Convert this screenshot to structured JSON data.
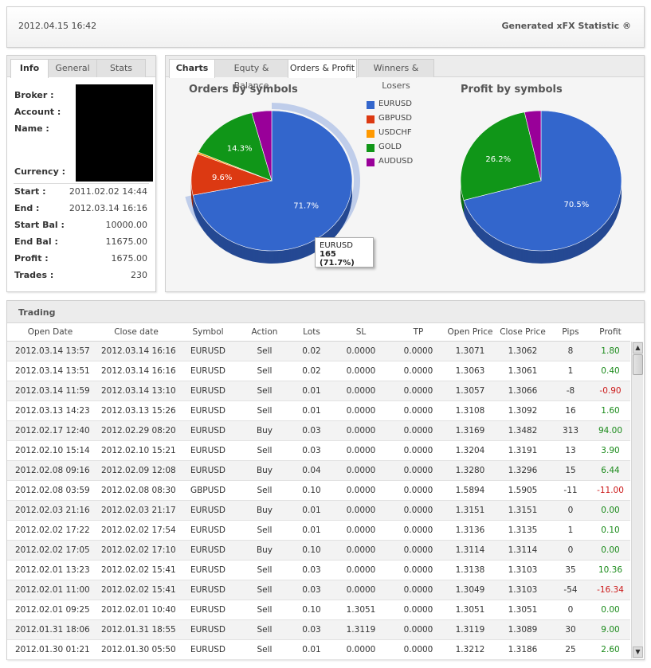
{
  "header": {
    "date": "2012.04.15 16:42",
    "generator": "Generated xFX Statistic ®"
  },
  "info": {
    "tabs": [
      "Info",
      "General",
      "Stats"
    ],
    "labels": {
      "broker": "Broker :",
      "account": "Account :",
      "name": "Name :",
      "currency": "Currency :"
    },
    "rows": [
      {
        "label": "Start :",
        "value": "2011.02.02 14:44"
      },
      {
        "label": "End :",
        "value": "2012.03.14 16:16"
      },
      {
        "label": "Start Bal :",
        "value": "10000.00"
      },
      {
        "label": "End Bal :",
        "value": "11675.00"
      },
      {
        "label": "Profit :",
        "value": "1675.00"
      },
      {
        "label": "Trades :",
        "value": "230"
      }
    ]
  },
  "charts_panel": {
    "tabs": [
      "Charts",
      "Equty & Balance",
      "Orders & Profit",
      "Winners & Losers"
    ],
    "tooltip": {
      "symbol": "EURUSD",
      "value": "165 (71.7%)"
    }
  },
  "chart_data": [
    {
      "type": "pie",
      "title": "Orders by symbols",
      "slices": [
        {
          "label": "EURUSD",
          "value": 71.7,
          "display": "71.7%"
        },
        {
          "label": "GBPUSD",
          "value": 9.6,
          "display": "9.6%"
        },
        {
          "label": "USDCHF",
          "value": 0.4,
          "display": ""
        },
        {
          "label": "GOLD",
          "value": 14.3,
          "display": "14.3%"
        },
        {
          "label": "AUDUSD",
          "value": 4.0,
          "display": ""
        }
      ],
      "legend": [
        "EURUSD",
        "GBPUSD",
        "USDCHF",
        "GOLD",
        "AUDUSD"
      ],
      "legend_placement": "right",
      "colors": [
        "#3366cc",
        "#dc3912",
        "#ff9900",
        "#109618",
        "#990099"
      ]
    },
    {
      "type": "pie",
      "title": "Profit by symbols",
      "slices": [
        {
          "label": "EURUSD",
          "value": 70.5,
          "display": "70.5%"
        },
        {
          "label": "GOLD",
          "value": 26.2,
          "display": "26.2%"
        },
        {
          "label": "AUDUSD",
          "value": 3.3,
          "display": ""
        }
      ],
      "colors": [
        "#3366cc",
        "#109618",
        "#990099"
      ]
    }
  ],
  "trading": {
    "title": "Trading",
    "columns": [
      "Open Date",
      "Close date",
      "Symbol",
      "Action",
      "Lots",
      "SL",
      "TP",
      "Open Price",
      "Close Price",
      "Pips",
      "Profit"
    ],
    "rows": [
      [
        "2012.03.14 13:57",
        "2012.03.14 16:16",
        "EURUSD",
        "Sell",
        "0.02",
        "0.0000",
        "0.0000",
        "1.3071",
        "1.3062",
        "8",
        "1.80"
      ],
      [
        "2012.03.14 13:51",
        "2012.03.14 16:16",
        "EURUSD",
        "Sell",
        "0.02",
        "0.0000",
        "0.0000",
        "1.3063",
        "1.3061",
        "1",
        "0.40"
      ],
      [
        "2012.03.14 11:59",
        "2012.03.14 13:10",
        "EURUSD",
        "Sell",
        "0.01",
        "0.0000",
        "0.0000",
        "1.3057",
        "1.3066",
        "-8",
        "-0.90"
      ],
      [
        "2012.03.13 14:23",
        "2012.03.13 15:26",
        "EURUSD",
        "Sell",
        "0.01",
        "0.0000",
        "0.0000",
        "1.3108",
        "1.3092",
        "16",
        "1.60"
      ],
      [
        "2012.02.17 12:40",
        "2012.02.29 08:20",
        "EURUSD",
        "Buy",
        "0.03",
        "0.0000",
        "0.0000",
        "1.3169",
        "1.3482",
        "313",
        "94.00"
      ],
      [
        "2012.02.10 15:14",
        "2012.02.10 15:21",
        "EURUSD",
        "Sell",
        "0.03",
        "0.0000",
        "0.0000",
        "1.3204",
        "1.3191",
        "13",
        "3.90"
      ],
      [
        "2012.02.08 09:16",
        "2012.02.09 12:08",
        "EURUSD",
        "Buy",
        "0.04",
        "0.0000",
        "0.0000",
        "1.3280",
        "1.3296",
        "15",
        "6.44"
      ],
      [
        "2012.02.08 03:59",
        "2012.02.08 08:30",
        "GBPUSD",
        "Sell",
        "0.10",
        "0.0000",
        "0.0000",
        "1.5894",
        "1.5905",
        "-11",
        "-11.00"
      ],
      [
        "2012.02.03 21:16",
        "2012.02.03 21:17",
        "EURUSD",
        "Buy",
        "0.01",
        "0.0000",
        "0.0000",
        "1.3151",
        "1.3151",
        "0",
        "0.00"
      ],
      [
        "2012.02.02 17:22",
        "2012.02.02 17:54",
        "EURUSD",
        "Sell",
        "0.01",
        "0.0000",
        "0.0000",
        "1.3136",
        "1.3135",
        "1",
        "0.10"
      ],
      [
        "2012.02.02 17:05",
        "2012.02.02 17:10",
        "EURUSD",
        "Buy",
        "0.10",
        "0.0000",
        "0.0000",
        "1.3114",
        "1.3114",
        "0",
        "0.00"
      ],
      [
        "2012.02.01 13:23",
        "2012.02.02 15:41",
        "EURUSD",
        "Sell",
        "0.03",
        "0.0000",
        "0.0000",
        "1.3138",
        "1.3103",
        "35",
        "10.36"
      ],
      [
        "2012.02.01 11:00",
        "2012.02.02 15:41",
        "EURUSD",
        "Sell",
        "0.03",
        "0.0000",
        "0.0000",
        "1.3049",
        "1.3103",
        "-54",
        "-16.34"
      ],
      [
        "2012.02.01 09:25",
        "2012.02.01 10:40",
        "EURUSD",
        "Sell",
        "0.10",
        "1.3051",
        "0.0000",
        "1.3051",
        "1.3051",
        "0",
        "0.00"
      ],
      [
        "2012.01.31 18:06",
        "2012.01.31 18:55",
        "EURUSD",
        "Sell",
        "0.03",
        "1.3119",
        "0.0000",
        "1.3119",
        "1.3089",
        "30",
        "9.00"
      ],
      [
        "2012.01.30 01:21",
        "2012.01.30 05:50",
        "EURUSD",
        "Sell",
        "0.01",
        "0.0000",
        "0.0000",
        "1.3212",
        "1.3186",
        "25",
        "2.60"
      ]
    ],
    "scroll_up_glyph": "▲",
    "scroll_down_glyph": "▼"
  }
}
